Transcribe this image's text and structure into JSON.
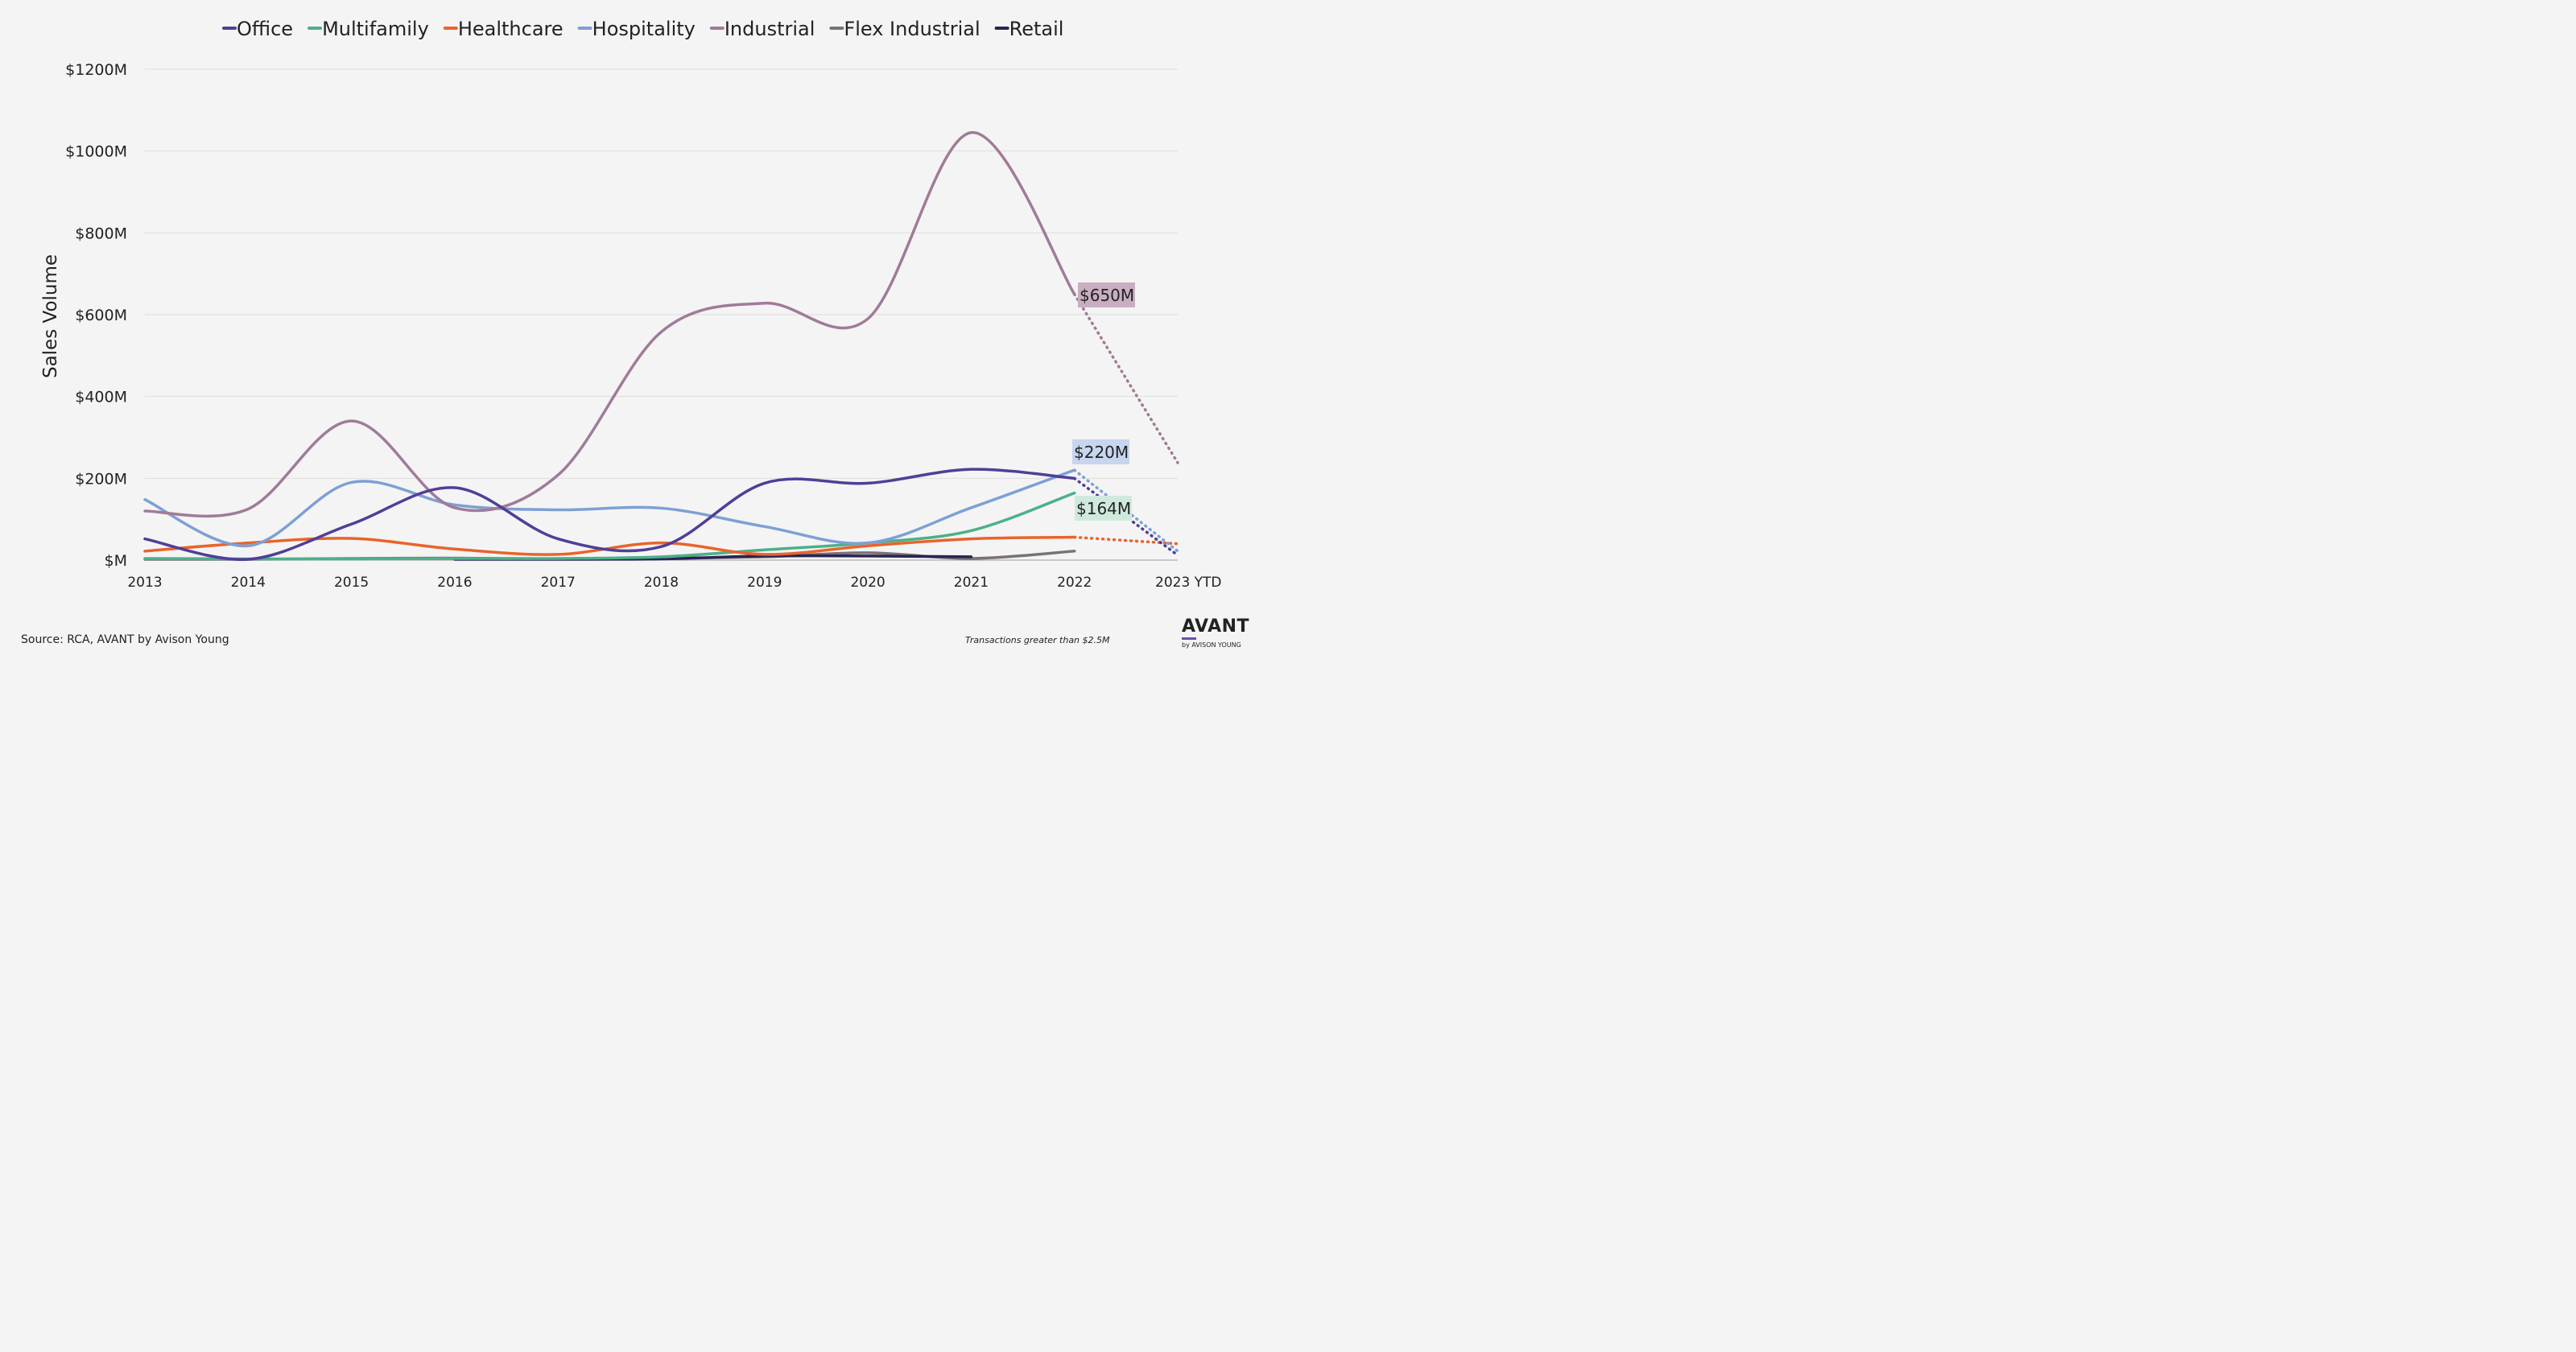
{
  "chart_data": {
    "type": "line",
    "title": "",
    "xlabel": "",
    "ylabel": "Sales Volume",
    "categories": [
      "2013",
      "2014",
      "2015",
      "2016",
      "2017",
      "2018",
      "2019",
      "2020",
      "2021",
      "2022",
      "2023 YTD"
    ],
    "y_ticks": [
      "$M",
      "$200M",
      "$400M",
      "$600M",
      "$800M",
      "$1000M",
      "$1200M"
    ],
    "y_tick_values": [
      0,
      200,
      400,
      600,
      800,
      1000,
      1200
    ],
    "ylim": [
      0,
      1200
    ],
    "grid": true,
    "legend_position": "top",
    "series": [
      {
        "name": "Office",
        "color": "#4f3f98",
        "values": [
          52,
          2,
          88,
          177,
          52,
          33,
          188,
          188,
          222,
          200,
          12
        ],
        "dotted_last": true
      },
      {
        "name": "Multifamily",
        "color": "#4cb08a",
        "values": [
          4,
          3,
          3,
          4,
          4,
          8,
          25,
          42,
          72,
          164,
          null
        ],
        "dotted_last": false
      },
      {
        "name": "Healthcare",
        "color": "#e8642c",
        "values": [
          22,
          42,
          53,
          27,
          14,
          42,
          14,
          35,
          52,
          56,
          40
        ],
        "dotted_last": true
      },
      {
        "name": "Hospitality",
        "color": "#7da0d4",
        "values": [
          148,
          35,
          190,
          135,
          123,
          127,
          82,
          42,
          128,
          220,
          22
        ],
        "dotted_last": true
      },
      {
        "name": "Industrial",
        "color": "#a07b98",
        "values": [
          120,
          125,
          340,
          128,
          208,
          558,
          628,
          590,
          1045,
          650,
          238
        ],
        "dotted_last": true
      },
      {
        "name": "Flex Industrial",
        "color": "#7a7272",
        "values": [
          2,
          2,
          4,
          5,
          3,
          5,
          8,
          18,
          4,
          22,
          null
        ],
        "dotted_last": false
      },
      {
        "name": "Retail",
        "color": "#2a2456",
        "values": [
          null,
          null,
          null,
          2,
          2,
          3,
          10,
          10,
          8,
          null,
          null
        ],
        "dotted_last": false
      }
    ],
    "annotations": [
      {
        "label": "$650M",
        "series": "Industrial",
        "bg": "#c9aec2"
      },
      {
        "label": "$220M",
        "series": "Hospitality",
        "bg": "#c7d6ee"
      },
      {
        "label": "$164M",
        "series": "Multifamily",
        "bg": "#cfeadd"
      }
    ]
  },
  "footer": {
    "source": "Source: RCA, AVANT by Avison Young",
    "note": "Transactions greater than $2.5M"
  },
  "logo": {
    "main": "AVANT",
    "sub": "by AVISON YOUNG"
  }
}
